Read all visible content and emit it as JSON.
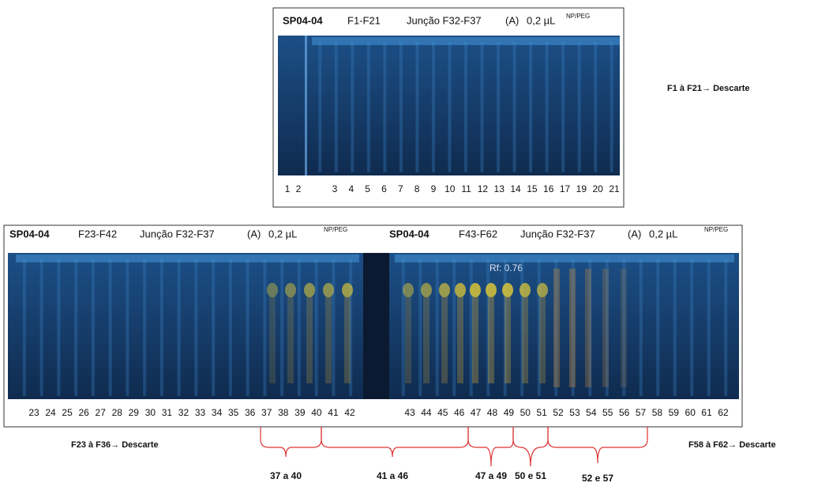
{
  "top_panel": {
    "header": {
      "sample": "SP04-04",
      "fractions": "F1-F21",
      "pool": "Junção F32-F37",
      "system": "(A)",
      "volume": "0,2 µL",
      "reagent": "NP/PEG"
    },
    "lanes": [
      1,
      2,
      3,
      4,
      5,
      6,
      7,
      8,
      9,
      10,
      11,
      12,
      13,
      14,
      15,
      16,
      17,
      19,
      20,
      21
    ],
    "note": "F1 à F21→ Descarte"
  },
  "bottom_panel": {
    "left_header": {
      "sample": "SP04-04",
      "fractions": "F23-F42",
      "pool": "Junção F32-F37",
      "system": "(A)",
      "volume": "0,2 µL",
      "reagent": "NP/PEG"
    },
    "right_header": {
      "sample": "SP04-04",
      "fractions": "F43-F62",
      "pool": "Junção F32-F37",
      "system": "(A)",
      "volume": "0,2 µL",
      "reagent": "NP/PEG"
    },
    "rf_label": "Rf: 0.76",
    "left_lanes": [
      23,
      24,
      25,
      26,
      27,
      28,
      29,
      30,
      31,
      32,
      33,
      34,
      35,
      36,
      37,
      38,
      39,
      40,
      41,
      42
    ],
    "right_lanes": [
      43,
      44,
      45,
      46,
      47,
      48,
      49,
      50,
      51,
      52,
      53,
      54,
      55,
      56,
      57,
      58,
      59,
      60,
      61,
      62
    ],
    "notes": [
      "F23 à F36→ Descarte",
      "F58 à F62→ Descarte"
    ],
    "groups": [
      "37 a 40",
      "41 a 46",
      "47 a 49",
      "50 e 51",
      "52 e 57"
    ]
  }
}
